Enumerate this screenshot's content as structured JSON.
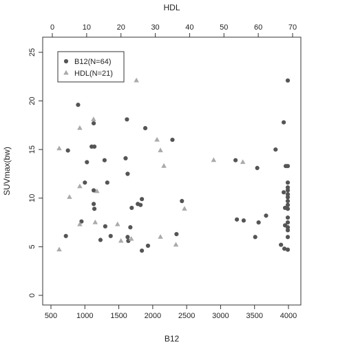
{
  "chart_data": {
    "type": "scatter",
    "xlabel": "B12",
    "x2label": "HDL",
    "ylabel": "SUVmax(bw)",
    "xlim": [
      500,
      4000
    ],
    "x2lim": [
      0,
      70
    ],
    "ylim": [
      0,
      25
    ],
    "xticks": [
      500,
      1000,
      1500,
      2000,
      2500,
      3000,
      3500,
      4000
    ],
    "x2ticks": [
      0,
      10,
      20,
      30,
      40,
      50,
      60,
      70
    ],
    "yticks": [
      0,
      5,
      10,
      15,
      20,
      25
    ],
    "grid": false,
    "legend_position": "top-left",
    "series": [
      {
        "name": "B12(N=64)",
        "axis": "bottom",
        "marker": "circle",
        "color": "#555555",
        "points": [
          [
            900,
            19.6
          ],
          [
            950,
            7.6
          ],
          [
            720,
            6.1
          ],
          [
            750,
            14.9
          ],
          [
            1000,
            11.6
          ],
          [
            1030,
            13.7
          ],
          [
            1100,
            15.3
          ],
          [
            1130,
            17.7
          ],
          [
            1140,
            15.3
          ],
          [
            1130,
            10.8
          ],
          [
            1130,
            9.4
          ],
          [
            1140,
            8.9
          ],
          [
            1230,
            5.7
          ],
          [
            1290,
            13.9
          ],
          [
            1300,
            7.1
          ],
          [
            1330,
            11.6
          ],
          [
            1380,
            6.1
          ],
          [
            1600,
            14.1
          ],
          [
            1620,
            18.1
          ],
          [
            1630,
            12.5
          ],
          [
            1630,
            6.0
          ],
          [
            1640,
            5.6
          ],
          [
            1670,
            7.0
          ],
          [
            1690,
            9.0
          ],
          [
            1780,
            9.4
          ],
          [
            1820,
            9.3
          ],
          [
            1840,
            9.9
          ],
          [
            1840,
            4.6
          ],
          [
            1890,
            17.2
          ],
          [
            1930,
            5.1
          ],
          [
            2290,
            16.0
          ],
          [
            2350,
            6.3
          ],
          [
            2430,
            9.7
          ],
          [
            3220,
            13.9
          ],
          [
            3240,
            7.8
          ],
          [
            3340,
            7.7
          ],
          [
            3510,
            6.0
          ],
          [
            3540,
            13.1
          ],
          [
            3560,
            7.5
          ],
          [
            3670,
            8.2
          ],
          [
            3890,
            5.2
          ],
          [
            3930,
            17.8
          ],
          [
            3960,
            13.3
          ],
          [
            3940,
            4.8
          ],
          [
            3990,
            22.1
          ],
          [
            3990,
            13.3
          ],
          [
            3990,
            11.6
          ],
          [
            3990,
            11.1
          ],
          [
            3990,
            10.8
          ],
          [
            3990,
            10.4
          ],
          [
            3990,
            10.1
          ],
          [
            3990,
            9.7
          ],
          [
            3990,
            9.3
          ],
          [
            3990,
            8.9
          ],
          [
            3990,
            8.0
          ],
          [
            3990,
            7.5
          ],
          [
            3990,
            7.0
          ],
          [
            3990,
            6.7
          ],
          [
            3990,
            6.0
          ],
          [
            3990,
            4.7
          ],
          [
            3810,
            15.0
          ],
          [
            3950,
            9.0
          ],
          [
            3950,
            7.2
          ],
          [
            3930,
            10.6
          ]
        ]
      },
      {
        "name": "HDL(N=21)",
        "axis": "top",
        "marker": "triangle",
        "color": "#aaaaaa",
        "points": [
          [
            2,
            4.7
          ],
          [
            2,
            15.1
          ],
          [
            5,
            10.1
          ],
          [
            8,
            7.3
          ],
          [
            8,
            11.2
          ],
          [
            8,
            17.2
          ],
          [
            12,
            18.1
          ],
          [
            13,
            10.7
          ],
          [
            19,
            7.3
          ],
          [
            20,
            5.6
          ],
          [
            24.5,
            22.1
          ],
          [
            30.5,
            16.0
          ],
          [
            31.5,
            14.9
          ],
          [
            32.5,
            13.3
          ],
          [
            31.5,
            6.0
          ],
          [
            36,
            5.2
          ],
          [
            38.5,
            8.9
          ],
          [
            47,
            13.9
          ],
          [
            55.5,
            13.7
          ],
          [
            23,
            5.8
          ],
          [
            12.5,
            7.5
          ]
        ]
      }
    ]
  }
}
